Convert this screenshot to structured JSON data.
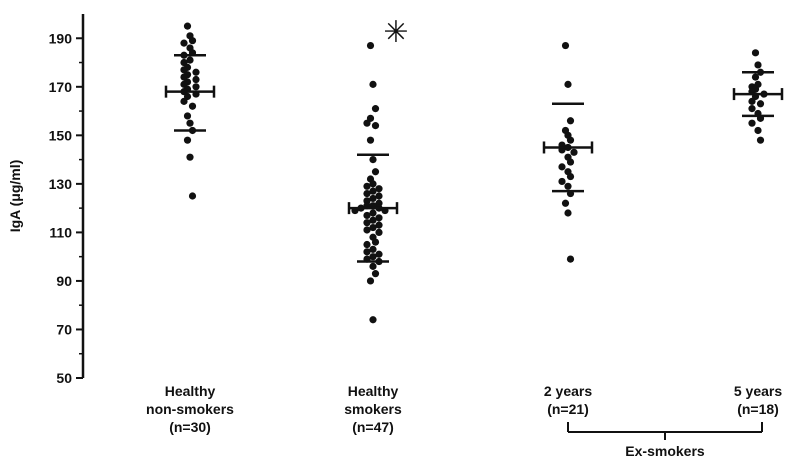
{
  "chart_data": {
    "type": "scatter",
    "ylabel": "IgA (μg/ml)",
    "ylim": [
      50,
      200
    ],
    "yticks": [
      50,
      70,
      90,
      110,
      130,
      150,
      170,
      190
    ],
    "grid": false,
    "significance_mark": "✳",
    "group_bracket_label": "Ex-smokers",
    "groups": [
      {
        "label_lines": [
          "Healthy",
          "non-smokers",
          "(n=30)"
        ],
        "mean": 168,
        "upper": 183,
        "lower": 152,
        "values": [
          195,
          191,
          189,
          188,
          186,
          184,
          183,
          181,
          180,
          178,
          177,
          176,
          175,
          174,
          173,
          172,
          171,
          170,
          169,
          168,
          167,
          166,
          164,
          162,
          158,
          155,
          152,
          148,
          141,
          125
        ]
      },
      {
        "label_lines": [
          "Healthy",
          "smokers",
          "(n=47)"
        ],
        "mean": 120,
        "upper": 142,
        "lower": 98,
        "values": [
          187,
          171,
          161,
          157,
          155,
          154,
          148,
          140,
          135,
          132,
          130,
          129,
          128,
          127,
          126,
          125,
          124,
          123,
          122,
          121,
          121,
          120,
          120,
          119,
          119,
          118,
          117,
          116,
          115,
          114,
          113,
          112,
          111,
          110,
          108,
          106,
          105,
          103,
          102,
          101,
          100,
          99,
          98,
          96,
          93,
          90,
          74
        ]
      },
      {
        "label_lines": [
          "2 years",
          "(n=21)"
        ],
        "mean": 145,
        "upper": 163,
        "lower": 127,
        "values": [
          187,
          171,
          156,
          152,
          150,
          148,
          146,
          145,
          144,
          143,
          141,
          139,
          137,
          135,
          133,
          131,
          129,
          126,
          122,
          118,
          99
        ]
      },
      {
        "label_lines": [
          "5 years",
          "(n=18)"
        ],
        "mean": 167,
        "upper": 176,
        "lower": 158,
        "values": [
          184,
          179,
          176,
          174,
          171,
          170,
          169,
          168,
          167,
          166,
          164,
          163,
          161,
          159,
          157,
          155,
          152,
          148
        ]
      }
    ]
  }
}
